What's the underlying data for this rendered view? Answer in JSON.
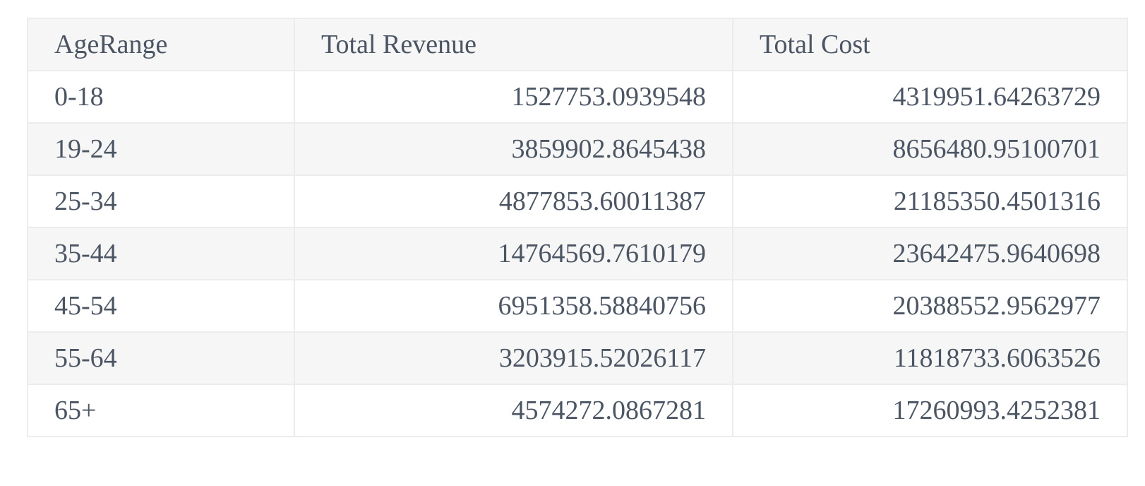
{
  "table": {
    "columns": [
      "AgeRange",
      "Total Revenue",
      "Total Cost"
    ],
    "rows": [
      {
        "age_range": "0-18",
        "total_revenue": "1527753.0939548",
        "total_cost": "4319951.64263729"
      },
      {
        "age_range": "19-24",
        "total_revenue": "3859902.8645438",
        "total_cost": "8656480.95100701"
      },
      {
        "age_range": "25-34",
        "total_revenue": "4877853.60011387",
        "total_cost": "21185350.4501316"
      },
      {
        "age_range": "35-44",
        "total_revenue": "14764569.7610179",
        "total_cost": "23642475.9640698"
      },
      {
        "age_range": "45-54",
        "total_revenue": "6951358.58840756",
        "total_cost": "20388552.9562977"
      },
      {
        "age_range": "55-64",
        "total_revenue": "3203915.52026117",
        "total_cost": "11818733.6063526"
      },
      {
        "age_range": "65+",
        "total_revenue": "4574272.0867281",
        "total_cost": "17260993.4252381"
      }
    ]
  },
  "colors": {
    "text": "#4b5563",
    "border": "#ececec",
    "stripe": "#f6f6f6",
    "background": "#ffffff"
  }
}
